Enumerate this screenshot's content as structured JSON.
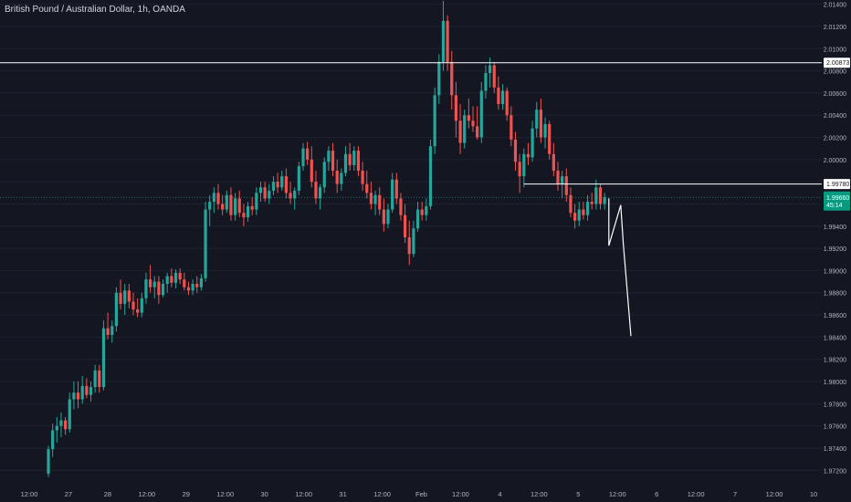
{
  "symbol": {
    "title": "British Pound / Australian Dollar, 1h, OANDA"
  },
  "colors": {
    "background": "#141722",
    "up": "#26a69a",
    "down": "#ef5350",
    "text": "#b2b5be",
    "grid": "#1e2230",
    "line": "#ffffff",
    "badge_bg": "#ffffff",
    "badge_text": "#131722",
    "price_badge_bg": "#089981"
  },
  "chart_data": {
    "type": "candlestick",
    "ylim": [
      1.9712,
      2.0143
    ],
    "y_ticks": [
      "2.01400",
      "2.01200",
      "2.01000",
      "2.00800",
      "2.00600",
      "2.00400",
      "2.00200",
      "2.00000",
      "1.99800",
      "1.99600",
      "1.99400",
      "1.99200",
      "1.99000",
      "1.98800",
      "1.98600",
      "1.98400",
      "1.98200",
      "1.98000",
      "1.97800",
      "1.97600",
      "1.97400",
      "1.97200"
    ],
    "x_ticks": [
      "12:00",
      "27",
      "28",
      "12:00",
      "29",
      "12:00",
      "30",
      "12:00",
      "31",
      "12:00",
      "Feb",
      "12:00",
      "4",
      "12:00",
      "5",
      "12:00",
      "6",
      "12:00",
      "7",
      "12:00",
      "10"
    ],
    "price_level_high": {
      "label": "2.00873",
      "value": 2.00873
    },
    "price_level_low": {
      "label": "1.99780",
      "value": 1.9978
    },
    "last_price": {
      "label": "1.99660",
      "countdown": "45:14",
      "value": 1.9966
    },
    "candles": [
      {
        "o": 1.9717,
        "h": 1.9742,
        "l": 1.9714,
        "c": 1.9739
      },
      {
        "o": 1.9739,
        "h": 1.9762,
        "l": 1.9732,
        "c": 1.9756
      },
      {
        "o": 1.9756,
        "h": 1.9768,
        "l": 1.9745,
        "c": 1.976
      },
      {
        "o": 1.976,
        "h": 1.9772,
        "l": 1.975,
        "c": 1.9765
      },
      {
        "o": 1.9765,
        "h": 1.9768,
        "l": 1.9752,
        "c": 1.9757
      },
      {
        "o": 1.9757,
        "h": 1.979,
        "l": 1.9754,
        "c": 1.9784
      },
      {
        "o": 1.9784,
        "h": 1.98,
        "l": 1.9775,
        "c": 1.979
      },
      {
        "o": 1.979,
        "h": 1.98,
        "l": 1.9776,
        "c": 1.9784
      },
      {
        "o": 1.9784,
        "h": 1.9805,
        "l": 1.978,
        "c": 1.9796
      },
      {
        "o": 1.9796,
        "h": 1.9803,
        "l": 1.9785,
        "c": 1.9788
      },
      {
        "o": 1.9788,
        "h": 1.98,
        "l": 1.9782,
        "c": 1.9795
      },
      {
        "o": 1.9795,
        "h": 1.9815,
        "l": 1.979,
        "c": 1.981
      },
      {
        "o": 1.981,
        "h": 1.9815,
        "l": 1.979,
        "c": 1.9795
      },
      {
        "o": 1.9795,
        "h": 1.9855,
        "l": 1.9792,
        "c": 1.9848
      },
      {
        "o": 1.9848,
        "h": 1.9862,
        "l": 1.9838,
        "c": 1.9842
      },
      {
        "o": 1.9842,
        "h": 1.9855,
        "l": 1.9835,
        "c": 1.985
      },
      {
        "o": 1.985,
        "h": 1.9885,
        "l": 1.9845,
        "c": 1.988
      },
      {
        "o": 1.988,
        "h": 1.9892,
        "l": 1.9865,
        "c": 1.987
      },
      {
        "o": 1.987,
        "h": 1.9888,
        "l": 1.986,
        "c": 1.9882
      },
      {
        "o": 1.9882,
        "h": 1.9888,
        "l": 1.9866,
        "c": 1.9872
      },
      {
        "o": 1.9872,
        "h": 1.988,
        "l": 1.986,
        "c": 1.9865
      },
      {
        "o": 1.9865,
        "h": 1.9875,
        "l": 1.9858,
        "c": 1.9862
      },
      {
        "o": 1.9862,
        "h": 1.988,
        "l": 1.9858,
        "c": 1.9875
      },
      {
        "o": 1.9875,
        "h": 1.9898,
        "l": 1.987,
        "c": 1.9892
      },
      {
        "o": 1.9892,
        "h": 1.9905,
        "l": 1.988,
        "c": 1.9885
      },
      {
        "o": 1.9885,
        "h": 1.9895,
        "l": 1.9875,
        "c": 1.989
      },
      {
        "o": 1.989,
        "h": 1.9895,
        "l": 1.987,
        "c": 1.9878
      },
      {
        "o": 1.9878,
        "h": 1.9892,
        "l": 1.9876,
        "c": 1.9888
      },
      {
        "o": 1.9888,
        "h": 1.9898,
        "l": 1.988,
        "c": 1.9895
      },
      {
        "o": 1.9895,
        "h": 1.9902,
        "l": 1.9885,
        "c": 1.9889
      },
      {
        "o": 1.9889,
        "h": 1.9901,
        "l": 1.9884,
        "c": 1.9898
      },
      {
        "o": 1.9898,
        "h": 1.9902,
        "l": 1.9888,
        "c": 1.9892
      },
      {
        "o": 1.9892,
        "h": 1.9898,
        "l": 1.9882,
        "c": 1.9885
      },
      {
        "o": 1.9885,
        "h": 1.989,
        "l": 1.9878,
        "c": 1.9882
      },
      {
        "o": 1.9882,
        "h": 1.9892,
        "l": 1.9878,
        "c": 1.9888
      },
      {
        "o": 1.9888,
        "h": 1.9895,
        "l": 1.988,
        "c": 1.9885
      },
      {
        "o": 1.9885,
        "h": 1.9897,
        "l": 1.9882,
        "c": 1.9893
      },
      {
        "o": 1.9893,
        "h": 1.9962,
        "l": 1.989,
        "c": 1.9955
      },
      {
        "o": 1.9955,
        "h": 1.9968,
        "l": 1.994,
        "c": 1.9962
      },
      {
        "o": 1.9962,
        "h": 1.9975,
        "l": 1.9952,
        "c": 1.997
      },
      {
        "o": 1.997,
        "h": 1.9978,
        "l": 1.9955,
        "c": 1.996
      },
      {
        "o": 1.996,
        "h": 1.9968,
        "l": 1.995,
        "c": 1.9955
      },
      {
        "o": 1.9955,
        "h": 1.9972,
        "l": 1.9952,
        "c": 1.9968
      },
      {
        "o": 1.9968,
        "h": 1.9975,
        "l": 1.9945,
        "c": 1.995
      },
      {
        "o": 1.995,
        "h": 1.997,
        "l": 1.9945,
        "c": 1.9965
      },
      {
        "o": 1.9965,
        "h": 1.9972,
        "l": 1.9948,
        "c": 1.9952
      },
      {
        "o": 1.9952,
        "h": 1.996,
        "l": 1.994,
        "c": 1.9948
      },
      {
        "o": 1.9948,
        "h": 1.9962,
        "l": 1.9944,
        "c": 1.9958
      },
      {
        "o": 1.9958,
        "h": 1.9966,
        "l": 1.995,
        "c": 1.9955
      },
      {
        "o": 1.9955,
        "h": 1.9975,
        "l": 1.995,
        "c": 1.997
      },
      {
        "o": 1.997,
        "h": 1.998,
        "l": 1.9962,
        "c": 1.9975
      },
      {
        "o": 1.9975,
        "h": 1.998,
        "l": 1.9962,
        "c": 1.9965
      },
      {
        "o": 1.9965,
        "h": 1.9978,
        "l": 1.996,
        "c": 1.9972
      },
      {
        "o": 1.9972,
        "h": 1.9985,
        "l": 1.9968,
        "c": 1.998
      },
      {
        "o": 1.998,
        "h": 1.9988,
        "l": 1.997,
        "c": 1.9975
      },
      {
        "o": 1.9975,
        "h": 1.999,
        "l": 1.9972,
        "c": 1.9985
      },
      {
        "o": 1.9985,
        "h": 1.9992,
        "l": 1.9965,
        "c": 1.997
      },
      {
        "o": 1.997,
        "h": 1.998,
        "l": 1.996,
        "c": 1.9965
      },
      {
        "o": 1.9965,
        "h": 1.9975,
        "l": 1.9955,
        "c": 1.9972
      },
      {
        "o": 1.9972,
        "h": 1.9998,
        "l": 1.9968,
        "c": 1.9994
      },
      {
        "o": 1.9994,
        "h": 2.0015,
        "l": 1.999,
        "c": 2.001
      },
      {
        "o": 2.001,
        "h": 2.0016,
        "l": 1.9995,
        "c": 2.0
      },
      {
        "o": 2.0,
        "h": 2.0012,
        "l": 1.9975,
        "c": 1.998
      },
      {
        "o": 1.998,
        "h": 1.999,
        "l": 1.996,
        "c": 1.9965
      },
      {
        "o": 1.9965,
        "h": 1.9978,
        "l": 1.9955,
        "c": 1.9975
      },
      {
        "o": 1.9975,
        "h": 2.0002,
        "l": 1.997,
        "c": 1.9998
      },
      {
        "o": 1.9998,
        "h": 2.0012,
        "l": 1.999,
        "c": 2.0008
      },
      {
        "o": 2.0008,
        "h": 2.0015,
        "l": 1.9985,
        "c": 1.999
      },
      {
        "o": 1.999,
        "h": 2.0,
        "l": 1.997,
        "c": 1.9978
      },
      {
        "o": 1.9978,
        "h": 1.9992,
        "l": 1.9972,
        "c": 1.9988
      },
      {
        "o": 1.9988,
        "h": 2.0012,
        "l": 1.9985,
        "c": 2.0005
      },
      {
        "o": 2.0005,
        "h": 2.0015,
        "l": 1.999,
        "c": 1.9995
      },
      {
        "o": 1.9995,
        "h": 2.0012,
        "l": 1.999,
        "c": 2.0008
      },
      {
        "o": 2.0008,
        "h": 2.0012,
        "l": 1.9985,
        "c": 1.999
      },
      {
        "o": 1.999,
        "h": 1.9998,
        "l": 1.9972,
        "c": 1.9978
      },
      {
        "o": 1.9978,
        "h": 1.999,
        "l": 1.9965,
        "c": 1.997
      },
      {
        "o": 1.997,
        "h": 1.998,
        "l": 1.9955,
        "c": 1.996
      },
      {
        "o": 1.996,
        "h": 1.9972,
        "l": 1.995,
        "c": 1.9968
      },
      {
        "o": 1.9968,
        "h": 1.9975,
        "l": 1.995,
        "c": 1.9955
      },
      {
        "o": 1.9955,
        "h": 1.9965,
        "l": 1.9935,
        "c": 1.9942
      },
      {
        "o": 1.9942,
        "h": 1.996,
        "l": 1.9938,
        "c": 1.9955
      },
      {
        "o": 1.9955,
        "h": 1.9988,
        "l": 1.9952,
        "c": 1.9982
      },
      {
        "o": 1.9982,
        "h": 1.9988,
        "l": 1.996,
        "c": 1.9965
      },
      {
        "o": 1.9965,
        "h": 1.997,
        "l": 1.9945,
        "c": 1.995
      },
      {
        "o": 1.995,
        "h": 1.996,
        "l": 1.9925,
        "c": 1.993
      },
      {
        "o": 1.993,
        "h": 1.9945,
        "l": 1.9905,
        "c": 1.9915
      },
      {
        "o": 1.9915,
        "h": 1.9945,
        "l": 1.9912,
        "c": 1.9938
      },
      {
        "o": 1.9938,
        "h": 1.9962,
        "l": 1.9935,
        "c": 1.9955
      },
      {
        "o": 1.9955,
        "h": 1.9962,
        "l": 1.9945,
        "c": 1.995
      },
      {
        "o": 1.995,
        "h": 1.9965,
        "l": 1.9945,
        "c": 1.9958
      },
      {
        "o": 1.9958,
        "h": 2.0018,
        "l": 1.9955,
        "c": 2.0012
      },
      {
        "o": 2.0012,
        "h": 2.0065,
        "l": 2.0005,
        "c": 2.0058
      },
      {
        "o": 2.0058,
        "h": 2.0095,
        "l": 2.005,
        "c": 2.0088
      },
      {
        "o": 2.0088,
        "h": 2.0143,
        "l": 2.008,
        "c": 2.0125
      },
      {
        "o": 2.0125,
        "h": 2.013,
        "l": 2.008,
        "c": 2.0088
      },
      {
        "o": 2.0088,
        "h": 2.0098,
        "l": 2.0045,
        "c": 2.0058
      },
      {
        "o": 2.0058,
        "h": 2.007,
        "l": 2.002,
        "c": 2.0035
      },
      {
        "o": 2.0035,
        "h": 2.005,
        "l": 2.0005,
        "c": 2.0015
      },
      {
        "o": 2.0015,
        "h": 2.0045,
        "l": 2.001,
        "c": 2.004
      },
      {
        "o": 2.004,
        "h": 2.0055,
        "l": 2.0028,
        "c": 2.0035
      },
      {
        "o": 2.0035,
        "h": 2.0048,
        "l": 2.0025,
        "c": 2.003
      },
      {
        "o": 2.003,
        "h": 2.0048,
        "l": 2.0018,
        "c": 2.002
      },
      {
        "o": 2.002,
        "h": 2.007,
        "l": 2.0015,
        "c": 2.0062
      },
      {
        "o": 2.0062,
        "h": 2.0085,
        "l": 2.0055,
        "c": 2.0078
      },
      {
        "o": 2.0078,
        "h": 2.0092,
        "l": 2.0065,
        "c": 2.0085
      },
      {
        "o": 2.0085,
        "h": 2.0088,
        "l": 2.006,
        "c": 2.0065
      },
      {
        "o": 2.0065,
        "h": 2.0075,
        "l": 2.0045,
        "c": 2.005
      },
      {
        "o": 2.005,
        "h": 2.0068,
        "l": 2.0045,
        "c": 2.0062
      },
      {
        "o": 2.0062,
        "h": 2.0065,
        "l": 2.0035,
        "c": 2.004
      },
      {
        "o": 2.004,
        "h": 2.0048,
        "l": 2.0012,
        "c": 2.0018
      },
      {
        "o": 2.0018,
        "h": 2.0025,
        "l": 1.999,
        "c": 1.9998
      },
      {
        "o": 1.9998,
        "h": 2.0005,
        "l": 1.997,
        "c": 1.9985
      },
      {
        "o": 1.9985,
        "h": 2.001,
        "l": 1.9975,
        "c": 2.0005
      },
      {
        "o": 2.0005,
        "h": 2.0015,
        "l": 1.9995,
        "c": 2.0002
      },
      {
        "o": 2.0002,
        "h": 2.0035,
        "l": 1.9998,
        "c": 2.0028
      },
      {
        "o": 2.0028,
        "h": 2.0052,
        "l": 2.002,
        "c": 2.0045
      },
      {
        "o": 2.0045,
        "h": 2.0055,
        "l": 2.0015,
        "c": 2.002
      },
      {
        "o": 2.002,
        "h": 2.0038,
        "l": 2.001,
        "c": 2.0032
      },
      {
        "o": 2.0032,
        "h": 2.0035,
        "l": 2.0,
        "c": 2.0005
      },
      {
        "o": 2.0005,
        "h": 2.0015,
        "l": 1.9985,
        "c": 1.999
      },
      {
        "o": 1.999,
        "h": 1.9998,
        "l": 1.9972,
        "c": 1.9978
      },
      {
        "o": 1.9978,
        "h": 1.999,
        "l": 1.9965,
        "c": 1.9985
      },
      {
        "o": 1.9985,
        "h": 1.9992,
        "l": 1.9962,
        "c": 1.9968
      },
      {
        "o": 1.9968,
        "h": 1.9975,
        "l": 1.9948,
        "c": 1.9952
      },
      {
        "o": 1.9952,
        "h": 1.996,
        "l": 1.9938,
        "c": 1.9945
      },
      {
        "o": 1.9945,
        "h": 1.9962,
        "l": 1.994,
        "c": 1.9955
      },
      {
        "o": 1.9955,
        "h": 1.9962,
        "l": 1.9946,
        "c": 1.995
      },
      {
        "o": 1.995,
        "h": 1.9968,
        "l": 1.9945,
        "c": 1.9962
      },
      {
        "o": 1.9962,
        "h": 1.997,
        "l": 1.9955,
        "c": 1.996
      },
      {
        "o": 1.996,
        "h": 1.9982,
        "l": 1.9955,
        "c": 1.9975
      },
      {
        "o": 1.9975,
        "h": 1.9978,
        "l": 1.9955,
        "c": 1.996
      },
      {
        "o": 1.996,
        "h": 1.997,
        "l": 1.9955,
        "c": 1.9966
      }
    ],
    "projection_path": [
      {
        "idx": 132,
        "price": 1.9965
      },
      {
        "idx": 132,
        "price": 1.99225
      },
      {
        "idx": 134.8,
        "price": 1.9959
      },
      {
        "idx": 135.4,
        "price": 1.99245
      },
      {
        "idx": 137.2,
        "price": 1.9841
      }
    ]
  }
}
